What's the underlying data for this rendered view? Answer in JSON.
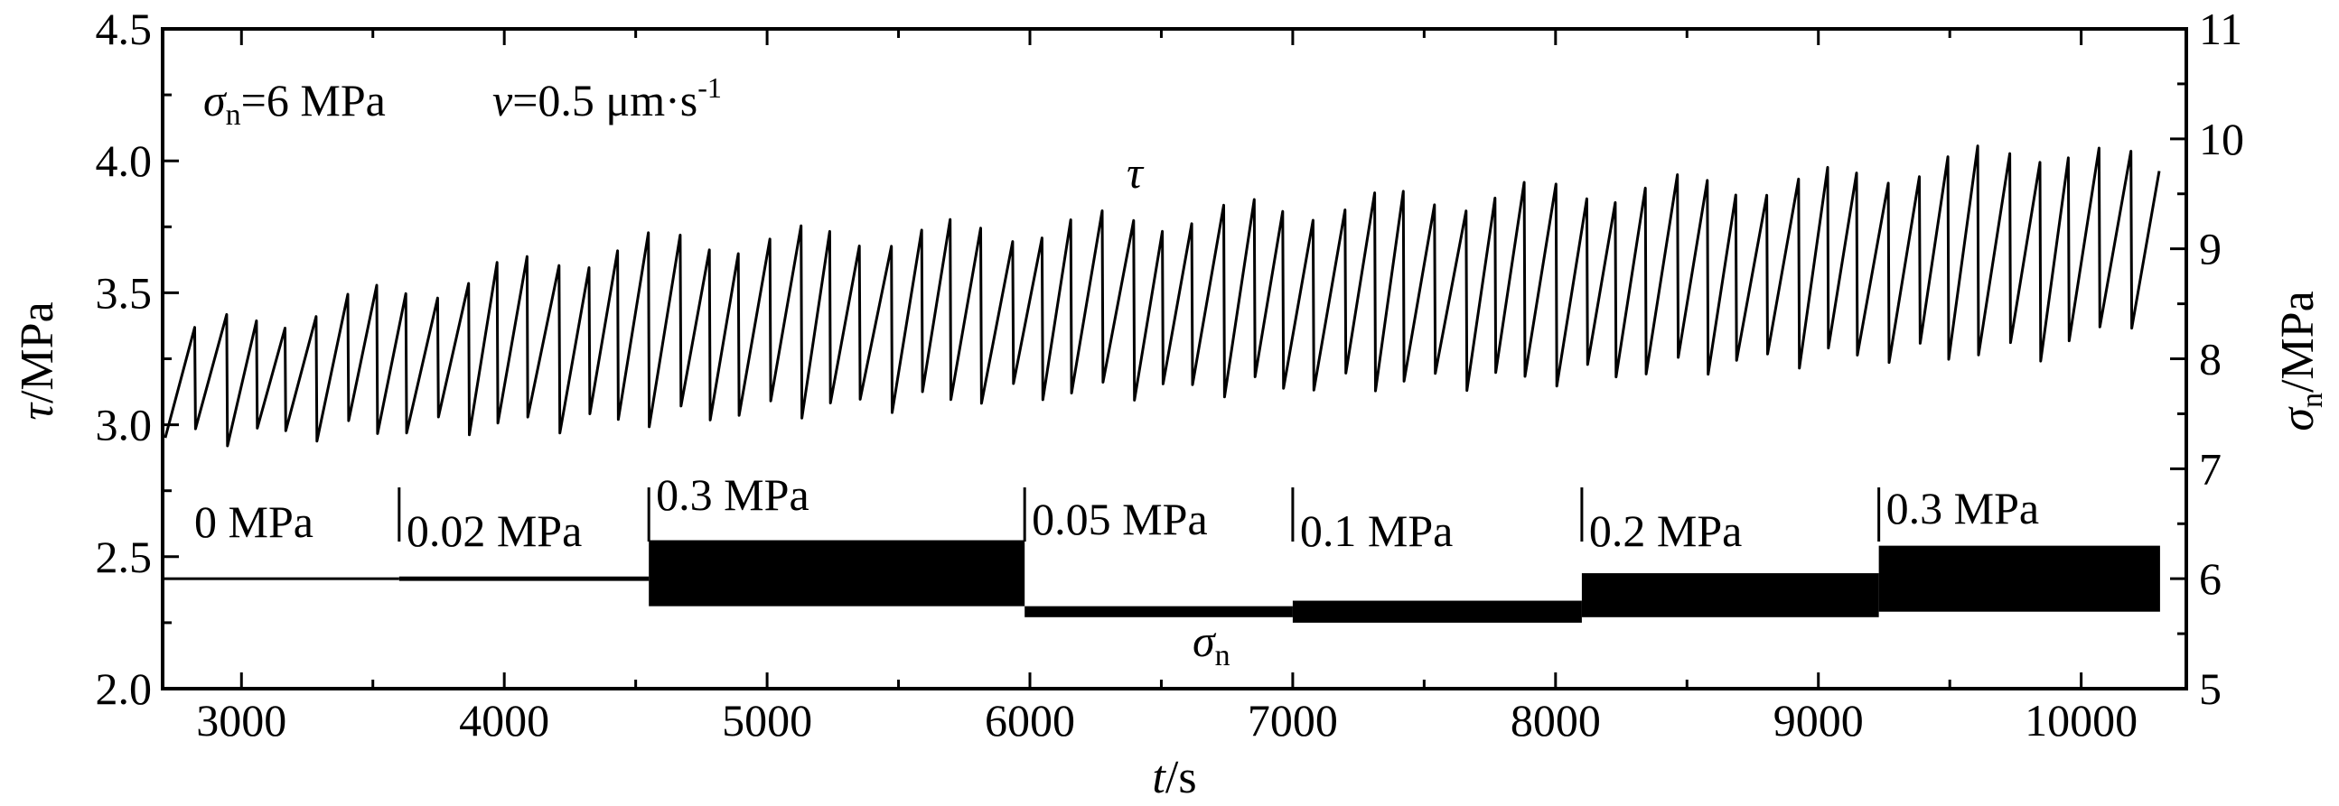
{
  "chart_data": {
    "type": "line",
    "xlabel_italic": "t",
    "xlabel_unit": "/s",
    "ylabel_left_italic": "τ",
    "ylabel_left_unit": "/MPa",
    "ylabel_right_symbol": "σ",
    "ylabel_right_sub": "n",
    "ylabel_right_unit": "/MPa",
    "xlim": [
      2700,
      10400
    ],
    "ylim_left": [
      2.0,
      4.5
    ],
    "ylim_right": [
      5,
      11
    ],
    "x_ticks": [
      3000,
      4000,
      5000,
      6000,
      7000,
      8000,
      9000,
      10000
    ],
    "y_left_ticks": [
      "2.0",
      "2.5",
      "3.0",
      "3.5",
      "4.0",
      "4.5"
    ],
    "y_right_ticks": [
      "5",
      "6",
      "7",
      "8",
      "9",
      "10",
      "11"
    ],
    "conditions": {
      "sigma_symbol": "σ",
      "sigma_sub": "n",
      "sigma_value": "=6 MPa",
      "v_symbol": "v",
      "v_value": "=0.5 μm·s",
      "v_sup": "-1"
    },
    "series": [
      {
        "label": "τ",
        "axis": "left",
        "pattern": "stick-slip sawtooth",
        "period_s": 115,
        "trend": {
          "x": [
            2700,
            4500,
            6000,
            7000,
            8000,
            9000,
            9900,
            10300
          ],
          "peak": [
            3.32,
            3.68,
            3.74,
            3.82,
            3.88,
            3.92,
            4.05,
            3.97
          ],
          "trough": [
            2.95,
            3.02,
            3.12,
            3.15,
            3.18,
            3.26,
            3.28,
            3.45
          ]
        }
      },
      {
        "label": "σ",
        "label_sub": "n",
        "axis": "right",
        "pattern": "normal stress with perturbation amplitude segments",
        "segments": [
          {
            "label": "0 MPa",
            "x_start": 2700,
            "x_end": 3600,
            "mean": 6.0,
            "amplitude": 0.0
          },
          {
            "label": "0.02 MPa",
            "x_start": 3600,
            "x_end": 4550,
            "mean": 6.0,
            "amplitude": 0.02
          },
          {
            "label": "0.3 MPa",
            "x_start": 4550,
            "x_end": 5980,
            "mean": 6.05,
            "amplitude": 0.3
          },
          {
            "label": "0.05 MPa",
            "x_start": 5980,
            "x_end": 7000,
            "mean": 5.7,
            "amplitude": 0.05
          },
          {
            "label": "0.1 MPa",
            "x_start": 7000,
            "x_end": 8100,
            "mean": 5.7,
            "amplitude": 0.1
          },
          {
            "label": "0.2 MPa",
            "x_start": 8100,
            "x_end": 9230,
            "mean": 5.85,
            "amplitude": 0.2
          },
          {
            "label": "0.3 MPa",
            "x_start": 9230,
            "x_end": 10300,
            "mean": 6.0,
            "amplitude": 0.3
          }
        ]
      }
    ]
  }
}
